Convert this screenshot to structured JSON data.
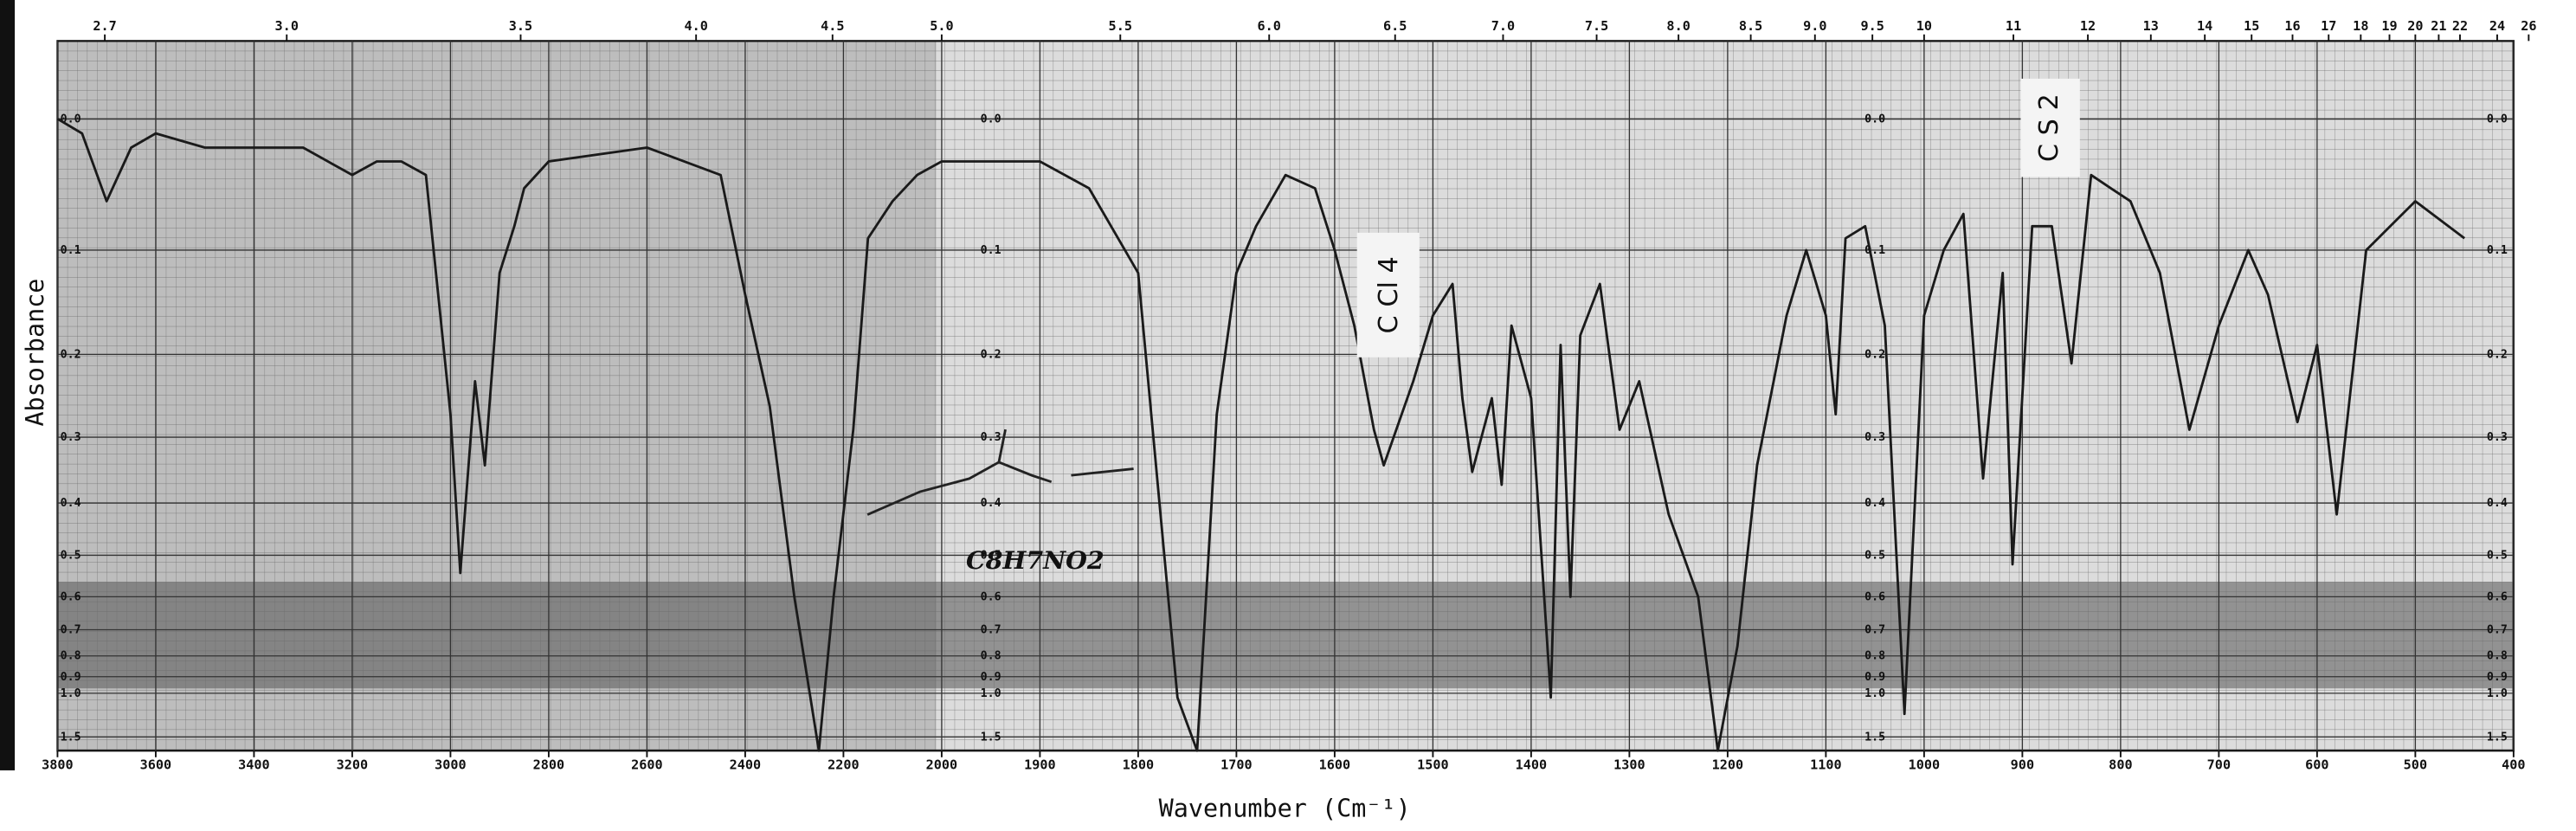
{
  "chart_data": {
    "type": "line",
    "x_label": "Wavenumber (Cm⁻¹)",
    "y_label": "Absorbance",
    "annotations": [
      "C Cl 4",
      "C S 2",
      "C8H7NO2"
    ],
    "xlim": [
      3800,
      400
    ],
    "xticks": [
      3800,
      3600,
      3400,
      3200,
      3000,
      2800,
      2600,
      2400,
      2200,
      2000,
      1900,
      1800,
      1700,
      1600,
      1500,
      1400,
      1300,
      1200,
      1100,
      1000,
      900,
      800,
      700,
      600,
      500,
      400
    ],
    "x2ticks": [
      {
        "value": 2.7,
        "label": "2.7"
      },
      {
        "value": 3,
        "label": "3.0"
      },
      3.5,
      {
        "value": 4,
        "label": "4.0"
      },
      4.5,
      {
        "value": 5,
        "label": "5.0"
      },
      5.5,
      {
        "value": 6,
        "label": "6.0"
      },
      6.5,
      {
        "value": 7,
        "label": "7.0"
      },
      7.5,
      {
        "value": 8,
        "label": "8.0"
      },
      8.5,
      {
        "value": 9,
        "label": "9.0"
      },
      9.5,
      10,
      11,
      12,
      13,
      14,
      15,
      16,
      17,
      18,
      19,
      20,
      21,
      22,
      24,
      26
    ],
    "ylim": [
      -0.05,
      2
    ],
    "yscale": "absorbance",
    "yticks": [
      {
        "value": 0,
        "label": "0.0"
      },
      0.1,
      0.2,
      0.3,
      0.4,
      0.5,
      0.6,
      0.7,
      0.8,
      0.9,
      {
        "value": 1,
        "label": "1.0"
      },
      1.5
    ],
    "grid": true,
    "series": [
      {
        "name": "Absorbance",
        "color": "#1a1a1a",
        "x": [
          3800,
          3750,
          3700,
          3650,
          3600,
          3500,
          3450,
          3300,
          3200,
          3150,
          3100,
          3050,
          3000,
          2980,
          2950,
          2930,
          2900,
          2870,
          2850,
          2800,
          2600,
          2450,
          2400,
          2350,
          2300,
          2250,
          2220,
          2180,
          2150,
          2100,
          2050,
          2000,
          1950,
          1900,
          1850,
          1800,
          1760,
          1740,
          1720,
          1700,
          1680,
          1650,
          1620,
          1600,
          1580,
          1560,
          1550,
          1520,
          1500,
          1480,
          1470,
          1460,
          1440,
          1430,
          1420,
          1400,
          1380,
          1370,
          1360,
          1350,
          1330,
          1310,
          1290,
          1260,
          1230,
          1210,
          1190,
          1170,
          1140,
          1120,
          1100,
          1090,
          1080,
          1060,
          1040,
          1020,
          1000,
          980,
          960,
          940,
          920,
          910,
          890,
          870,
          850,
          830,
          810,
          790,
          760,
          730,
          700,
          670,
          650,
          620,
          600,
          580,
          550,
          500,
          450
        ],
        "values": [
          0,
          0.01,
          0.06,
          0.02,
          0.01,
          0.02,
          0.02,
          0.02,
          0.04,
          0.03,
          0.03,
          0.04,
          0.27,
          0.54,
          0.23,
          0.34,
          0.12,
          0.08,
          0.05,
          0.03,
          0.02,
          0.04,
          0.14,
          0.26,
          0.6,
          2,
          0.6,
          0.29,
          0.09,
          0.06,
          0.04,
          0.03,
          0.03,
          0.03,
          0.05,
          0.12,
          1.03,
          2,
          0.27,
          0.12,
          0.08,
          0.04,
          0.05,
          0.1,
          0.17,
          0.29,
          0.34,
          0.23,
          0.16,
          0.13,
          0.25,
          0.35,
          0.25,
          0.37,
          0.17,
          0.25,
          1.03,
          0.19,
          0.6,
          0.18,
          0.13,
          0.29,
          0.23,
          0.42,
          0.6,
          2,
          0.76,
          0.34,
          0.16,
          0.1,
          0.16,
          0.27,
          0.09,
          0.08,
          0.17,
          1.17,
          0.16,
          0.1,
          0.07,
          0.36,
          0.12,
          0.52,
          0.08,
          0.08,
          0.21,
          0.04,
          0.05,
          0.06,
          0.12,
          0.29,
          0.17,
          0.1,
          0.14,
          0.28,
          0.19,
          0.42,
          0.1,
          0.06,
          0.09
        ]
      }
    ]
  }
}
